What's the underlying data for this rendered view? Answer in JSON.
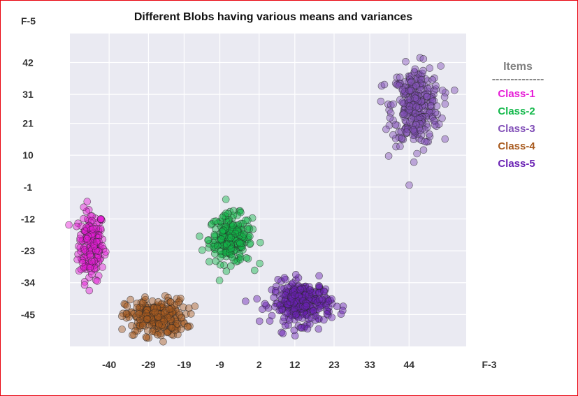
{
  "chart_data": {
    "type": "scatter",
    "title": "Different Blobs having various means and variances",
    "xlabel": "F-3",
    "ylabel": "F-5",
    "xlim": [
      -51,
      60
    ],
    "ylim": [
      -56,
      52
    ],
    "x_ticks": [
      "-40",
      "-29",
      "-19",
      "-9",
      "2",
      "12",
      "23",
      "33",
      "44"
    ],
    "y_ticks": [
      "42",
      "31",
      "21",
      "10",
      "-1",
      "-12",
      "-23",
      "-34",
      "-45"
    ],
    "grid": true,
    "legend": {
      "title": "Items",
      "separator": "--------------",
      "placement": "right"
    },
    "series": [
      {
        "name": "Class-1",
        "color": "#e61cd7",
        "center": [
          -45,
          -21
        ],
        "spread": [
          1.8,
          6.0
        ],
        "count": 190
      },
      {
        "name": "Class-2",
        "color": "#12b84a",
        "center": [
          -6,
          -19
        ],
        "spread": [
          3.0,
          4.2
        ],
        "count": 230
      },
      {
        "name": "Class-3",
        "color": "#8250b8",
        "center": [
          46,
          27
        ],
        "spread": [
          3.4,
          6.8
        ],
        "count": 300
      },
      {
        "name": "Class-4",
        "color": "#a85a1e",
        "center": [
          -27,
          -46
        ],
        "spread": [
          4.2,
          3.2
        ],
        "count": 260
      },
      {
        "name": "Class-5",
        "color": "#6a22b4",
        "center": [
          14,
          -41
        ],
        "spread": [
          4.2,
          3.6
        ],
        "count": 300
      }
    ]
  }
}
